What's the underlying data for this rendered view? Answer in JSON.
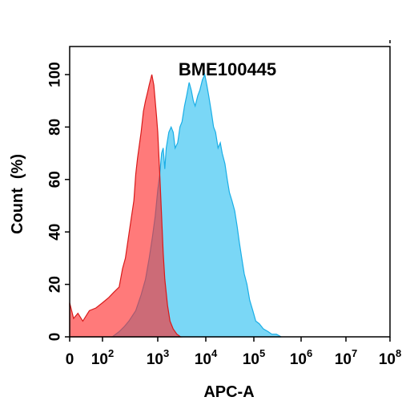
{
  "chart_data": {
    "type": "area",
    "title": "BME100445",
    "xlabel": "APC-A",
    "ylabel": "Count  (%)",
    "x_scale": "biexponential",
    "x_ticks": [
      {
        "value": 0,
        "base": "0",
        "exp": ""
      },
      {
        "value": 100,
        "base": "10",
        "exp": "2"
      },
      {
        "value": 1000,
        "base": "10",
        "exp": "3"
      },
      {
        "value": 10000,
        "base": "10",
        "exp": "4"
      },
      {
        "value": 100000,
        "base": "10",
        "exp": "5"
      },
      {
        "value": 1000000,
        "base": "10",
        "exp": "6"
      },
      {
        "value": 10000000,
        "base": "10",
        "exp": "7"
      },
      {
        "value": 100000000,
        "base": "10",
        "exp": "8"
      }
    ],
    "y_ticks": [
      "0",
      "20",
      "40",
      "60",
      "80",
      "100"
    ],
    "ylim": [
      0,
      100
    ],
    "grid": false,
    "series": [
      {
        "color": "#ff4d4d",
        "points": [
          [
            0,
            13
          ],
          [
            12,
            7
          ],
          [
            25,
            9
          ],
          [
            40,
            6
          ],
          [
            60,
            10
          ],
          [
            80,
            11
          ],
          [
            100,
            13
          ],
          [
            130,
            15
          ],
          [
            160,
            17
          ],
          [
            200,
            19
          ],
          [
            230,
            26
          ],
          [
            260,
            30
          ],
          [
            300,
            39
          ],
          [
            330,
            45
          ],
          [
            370,
            52
          ],
          [
            400,
            62
          ],
          [
            430,
            68
          ],
          [
            470,
            74
          ],
          [
            500,
            78
          ],
          [
            550,
            86
          ],
          [
            600,
            90
          ],
          [
            650,
            93
          ],
          [
            700,
            96
          ],
          [
            780,
            100
          ],
          [
            850,
            96
          ],
          [
            900,
            90
          ],
          [
            950,
            84
          ],
          [
            1000,
            78
          ],
          [
            1100,
            62
          ],
          [
            1200,
            46
          ],
          [
            1300,
            32
          ],
          [
            1400,
            22
          ],
          [
            1600,
            12
          ],
          [
            1800,
            6
          ],
          [
            2100,
            3
          ],
          [
            2500,
            1
          ],
          [
            3000,
            0
          ]
        ]
      },
      {
        "color": "#5ccff5",
        "points": [
          [
            150,
            0
          ],
          [
            200,
            2
          ],
          [
            250,
            4
          ],
          [
            300,
            6
          ],
          [
            400,
            10
          ],
          [
            500,
            16
          ],
          [
            600,
            22
          ],
          [
            700,
            30
          ],
          [
            800,
            38
          ],
          [
            900,
            46
          ],
          [
            1000,
            56
          ],
          [
            1100,
            62
          ],
          [
            1200,
            70
          ],
          [
            1300,
            72
          ],
          [
            1400,
            64
          ],
          [
            1500,
            72
          ],
          [
            1700,
            78
          ],
          [
            1900,
            80
          ],
          [
            2100,
            78
          ],
          [
            2300,
            72
          ],
          [
            2600,
            74
          ],
          [
            2900,
            80
          ],
          [
            3200,
            82
          ],
          [
            3600,
            88
          ],
          [
            4000,
            92
          ],
          [
            4500,
            97
          ],
          [
            5000,
            94
          ],
          [
            5500,
            90
          ],
          [
            6000,
            88
          ],
          [
            6800,
            92
          ],
          [
            7500,
            94
          ],
          [
            8500,
            98
          ],
          [
            9500,
            100
          ],
          [
            10500,
            96
          ],
          [
            11500,
            92
          ],
          [
            13000,
            86
          ],
          [
            14500,
            80
          ],
          [
            16000,
            78
          ],
          [
            18000,
            72
          ],
          [
            20000,
            74
          ],
          [
            22000,
            70
          ],
          [
            25000,
            66
          ],
          [
            28000,
            60
          ],
          [
            31000,
            55
          ],
          [
            35000,
            52
          ],
          [
            40000,
            48
          ],
          [
            45000,
            42
          ],
          [
            50000,
            36
          ],
          [
            56000,
            30
          ],
          [
            63000,
            24
          ],
          [
            72000,
            20
          ],
          [
            82000,
            14
          ],
          [
            95000,
            10
          ],
          [
            110000,
            6
          ],
          [
            130000,
            5
          ],
          [
            160000,
            3
          ],
          [
            200000,
            2
          ],
          [
            240000,
            1
          ],
          [
            300000,
            1
          ],
          [
            380000,
            0
          ]
        ]
      }
    ]
  }
}
